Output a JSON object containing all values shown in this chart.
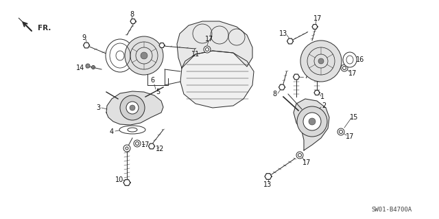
{
  "bg_color": "#ffffff",
  "line_color": "#2a2a2a",
  "label_color": "#111111",
  "diagram_code": "SW01-B4700A",
  "fr_label": "FR.",
  "label_fontsize": 7.0,
  "lw": 0.7
}
